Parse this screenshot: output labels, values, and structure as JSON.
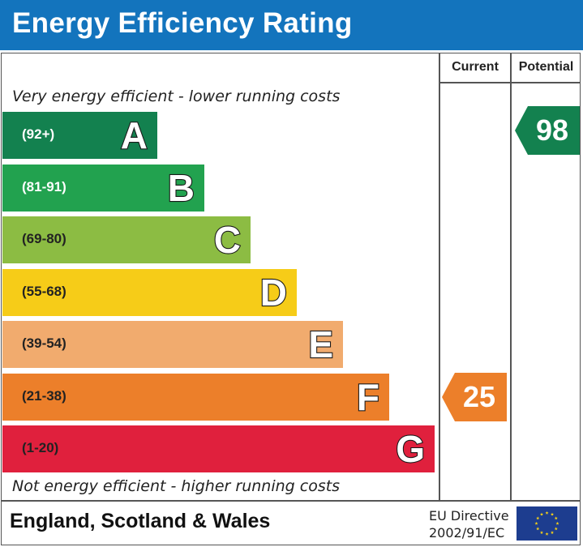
{
  "title": "Energy Efficiency Rating",
  "columns": {
    "current": "Current",
    "potential": "Potential"
  },
  "top_note": "Very energy efficient - lower running costs",
  "bottom_note": "Not energy efficient - higher running costs",
  "footer": {
    "region": "England, Scotland & Wales",
    "directive_line1": "EU Directive",
    "directive_line2": "2002/91/EC",
    "flag_icon": "eu-flag-icon"
  },
  "chart_data": {
    "type": "bar",
    "categories": [
      "A",
      "B",
      "C",
      "D",
      "E",
      "F",
      "G"
    ],
    "bands": [
      {
        "letter": "A",
        "range": "(92+)",
        "color": "#13814f",
        "range_text_color": "#ffffff"
      },
      {
        "letter": "B",
        "range": "(81-91)",
        "color": "#22a24f",
        "range_text_color": "#ffffff"
      },
      {
        "letter": "C",
        "range": "(69-80)",
        "color": "#8cbc43",
        "range_text_color": "#222222"
      },
      {
        "letter": "D",
        "range": "(55-68)",
        "color": "#f6cc18",
        "range_text_color": "#222222"
      },
      {
        "letter": "E",
        "range": "(39-54)",
        "color": "#f1ab6e",
        "range_text_color": "#222222"
      },
      {
        "letter": "F",
        "range": "(21-38)",
        "color": "#ec7f2a",
        "range_text_color": "#222222"
      },
      {
        "letter": "G",
        "range": "(1-20)",
        "color": "#e0203d",
        "range_text_color": "#222222"
      }
    ],
    "current": {
      "value": 25,
      "band": "F",
      "color": "#ec7f2a"
    },
    "potential": {
      "value": 98,
      "band": "A",
      "color": "#13814f"
    }
  }
}
